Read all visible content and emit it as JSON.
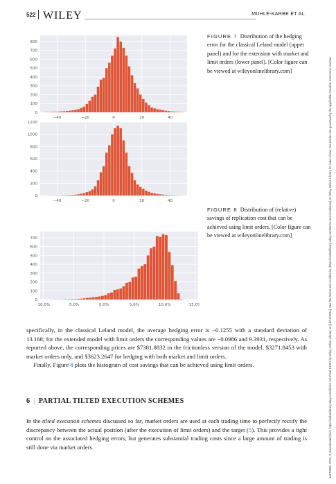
{
  "header": {
    "page_number": "522",
    "logo": "WILEY",
    "authors": "MUHLE-KARBE ET AL."
  },
  "sidebar_text": "14679965, 2023, 3, Downloaded from https://onlinelibrary.wiley.com/doi/10.1111/mafi.12391 by Wiley Online Library on [18/12/2024]. See the Terms and Conditions (https://onlinelibrary.wiley.com/terms-and-conditions) on Wiley Online Library for rules of use; OA articles are governed by the applicable Creative Commons License",
  "figure7": {
    "label": "FIGURE 7",
    "caption": "Distribution of the hedging error for the classical Leland model (upper panel) and for the extension with market and limit orders (lower panel). [Color figure can be viewed at wileyonlinelibrary.com]"
  },
  "figure8": {
    "label": "FIGURE 8",
    "caption": "Distribution of (relative) savings of replication cost that can be achieved using limit orders. [Color figure can be viewed at wileyonlinelibrary.com]"
  },
  "chart_data": [
    {
      "type": "bar",
      "title": "",
      "x_ticks": [
        "−40",
        "−20",
        "0",
        "20",
        "40"
      ],
      "x_tick_values": [
        -40,
        -20,
        0,
        20,
        40
      ],
      "xlim": [
        -52,
        52
      ],
      "ylim": [
        0,
        870
      ],
      "y_ticks": [
        "0",
        "100",
        "200",
        "300",
        "400",
        "500",
        "600",
        "700",
        "800"
      ],
      "y_tick_values": [
        0,
        100,
        200,
        300,
        400,
        500,
        600,
        700,
        800
      ],
      "bin_start": -50,
      "bin_width": 2,
      "values": [
        2,
        3,
        4,
        5,
        6,
        8,
        10,
        12,
        15,
        18,
        22,
        28,
        36,
        48,
        65,
        95,
        130,
        175,
        200,
        290,
        370,
        390,
        500,
        560,
        640,
        720,
        850,
        800,
        730,
        640,
        520,
        420,
        330,
        270,
        200,
        150,
        110,
        80,
        55,
        45,
        35,
        30,
        24,
        18,
        14,
        10,
        8,
        6,
        5,
        3
      ],
      "grid": true,
      "color": "#e05436",
      "background": "#ebebf2"
    },
    {
      "type": "bar",
      "title": "",
      "x_ticks": [
        "−40",
        "−20",
        "0",
        "20",
        "40"
      ],
      "x_tick_values": [
        -40,
        -20,
        0,
        20,
        40
      ],
      "xlim": [
        -52,
        52
      ],
      "ylim": [
        0,
        1200
      ],
      "y_ticks": [
        "0",
        "200",
        "400",
        "600",
        "800",
        "1000",
        "1200"
      ],
      "y_tick_values": [
        0,
        200,
        400,
        600,
        800,
        1000,
        1200
      ],
      "bin_start": -50,
      "bin_width": 2,
      "values": [
        1,
        1,
        2,
        2,
        3,
        3,
        4,
        5,
        6,
        8,
        10,
        14,
        20,
        30,
        40,
        55,
        70,
        100,
        150,
        250,
        380,
        480,
        700,
        820,
        1000,
        1100,
        1140,
        1100,
        900,
        700,
        480,
        370,
        250,
        180,
        140,
        110,
        80,
        60,
        45,
        35,
        25,
        20,
        15,
        12,
        8,
        6,
        4,
        3,
        2,
        1
      ],
      "grid": true,
      "color": "#e05436",
      "background": "#ebebf2"
    },
    {
      "type": "bar",
      "title": "",
      "x_ticks": [
        "-10.0%",
        "-5.0%",
        "0.0%",
        "5.0%",
        "10.0%",
        "15.0%"
      ],
      "x_tick_values": [
        -10,
        -5,
        0,
        5,
        10,
        15
      ],
      "xlim": [
        -10.5,
        15.5
      ],
      "ylim": [
        0,
        770
      ],
      "y_ticks": [
        "0",
        "100",
        "200",
        "300",
        "400",
        "500",
        "600",
        "700"
      ],
      "y_tick_values": [
        0,
        100,
        200,
        300,
        400,
        500,
        600,
        700
      ],
      "bin_start": -9.5,
      "bin_width": 0.5,
      "values": [
        0,
        1,
        1,
        1,
        2,
        2,
        3,
        4,
        5,
        6,
        8,
        10,
        14,
        18,
        22,
        26,
        30,
        35,
        42,
        50,
        70,
        80,
        110,
        115,
        125,
        150,
        190,
        200,
        250,
        260,
        350,
        380,
        400,
        500,
        580,
        600,
        720,
        710,
        740,
        730,
        540,
        390,
        210,
        70,
        5
      ],
      "grid": true,
      "color": "#e05436",
      "background": "#ebebf2"
    }
  ],
  "body": {
    "p1": "specifically, in the classical Leland model, the average hedging error is −0.1255 with a standard deviation of 13.168; for the extended model with limit orders the corresponding values are −0.0986 and 9.3931, respectively. As reported above, the corresponding prices are $7381.8832 in the frictionless version of the model, $3271.8453 with market orders only, and $3623.2647 for hedging with both market and limit orders.",
    "p2_a": "Finally, Figure ",
    "p2_ref": "8",
    "p2_b": " plots the histogram of cost savings that can be achieved using limit orders.",
    "section_number": "6",
    "section_sep": "|",
    "section_title": "PARTIAL TILTED EXECUTION SCHEMES",
    "p3_a": "In the ",
    "p3_em": "tilted execution schemes",
    "p3_b": " discussed so far, market orders are used at each trading time to perfectly rectify the discrepancy between the actual position (after the execution of limit orders) and the target (",
    "p3_ref": "5",
    "p3_c": "). This provides a tight control on the associated hedging errors, but generates substantial trading costs since a large amount of trading is still done via market orders."
  }
}
